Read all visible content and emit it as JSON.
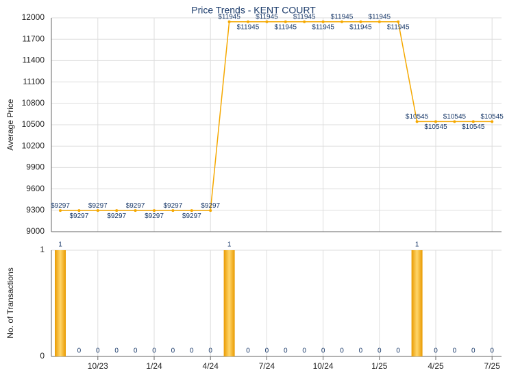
{
  "chart_data": [
    {
      "type": "line",
      "title": "Price Trends - KENT COURT",
      "y_label": "Average Price",
      "color": "#f5a800",
      "values": [
        9297,
        9297,
        9297,
        9297,
        9297,
        9297,
        9297,
        9297,
        9297,
        11945,
        11945,
        11945,
        11945,
        11945,
        11945,
        11945,
        11945,
        11945,
        11945,
        10545,
        10545,
        10545,
        10545,
        10545
      ],
      "value_labels": [
        "$9297",
        "$9297",
        "$9297",
        "$9297",
        "$9297",
        "$9297",
        "$9297",
        "$9297",
        "$9297",
        "$11945",
        "$11945",
        "$11945",
        "$11945",
        "$11945",
        "$11945",
        "$11945",
        "$11945",
        "$11945",
        "$11945",
        "$10545",
        "$10545",
        "$10545",
        "$10545",
        "$10545"
      ],
      "ylim": [
        9000,
        12000
      ],
      "yticks": [
        9000,
        9300,
        9600,
        9900,
        10200,
        10500,
        10800,
        11100,
        11400,
        11700,
        12000
      ],
      "grid": true
    },
    {
      "type": "bar",
      "y_label": "No. of Transactions",
      "color": "#f5a800",
      "categories": [
        null,
        null,
        "10/23",
        null,
        null,
        "1/24",
        null,
        null,
        "4/24",
        null,
        null,
        "7/24",
        null,
        null,
        "10/24",
        null,
        null,
        "1/25",
        null,
        null,
        "4/25",
        null,
        null,
        "7/25"
      ],
      "values": [
        1,
        0,
        0,
        0,
        0,
        0,
        0,
        0,
        0,
        1,
        0,
        0,
        0,
        0,
        0,
        0,
        0,
        0,
        0,
        1,
        0,
        0,
        0,
        0
      ],
      "ylim": [
        0,
        1
      ],
      "yticks": [
        0,
        1
      ],
      "grid": true
    }
  ]
}
